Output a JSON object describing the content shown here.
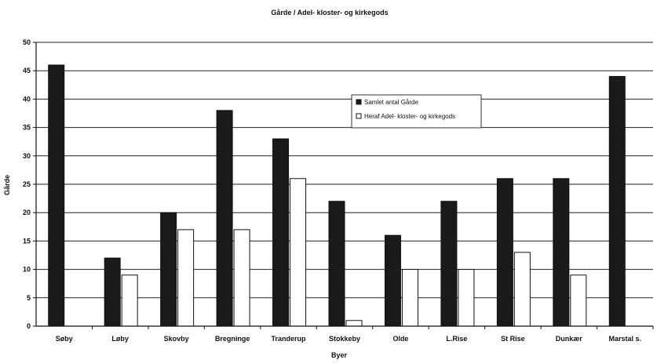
{
  "chart_data": {
    "type": "bar",
    "title": "Gårde / Adel- kloster- og kirkegods",
    "xlabel": "Byer",
    "ylabel": "Gårde",
    "ylim": [
      0,
      50
    ],
    "ytick_step": 5,
    "grid": true,
    "legend_position": "top-center",
    "categories": [
      "Søby",
      "Løby",
      "Skovby",
      "Bregninge",
      "Tranderup",
      "Stokkeby",
      "Olde",
      "L.Rise",
      "St Rise",
      "Dunkær",
      "Marstal s."
    ],
    "series": [
      {
        "name": "Samlet antal Gårde",
        "color": "#1a1a1a",
        "values": [
          46,
          12,
          20,
          38,
          33,
          22,
          16,
          22,
          26,
          26,
          44
        ]
      },
      {
        "name": "Heraf Adel- kloster- og kirkegods",
        "color": "#ffffff",
        "values": [
          0,
          9,
          17,
          17,
          26,
          1,
          10,
          10,
          13,
          9,
          0
        ]
      }
    ]
  }
}
